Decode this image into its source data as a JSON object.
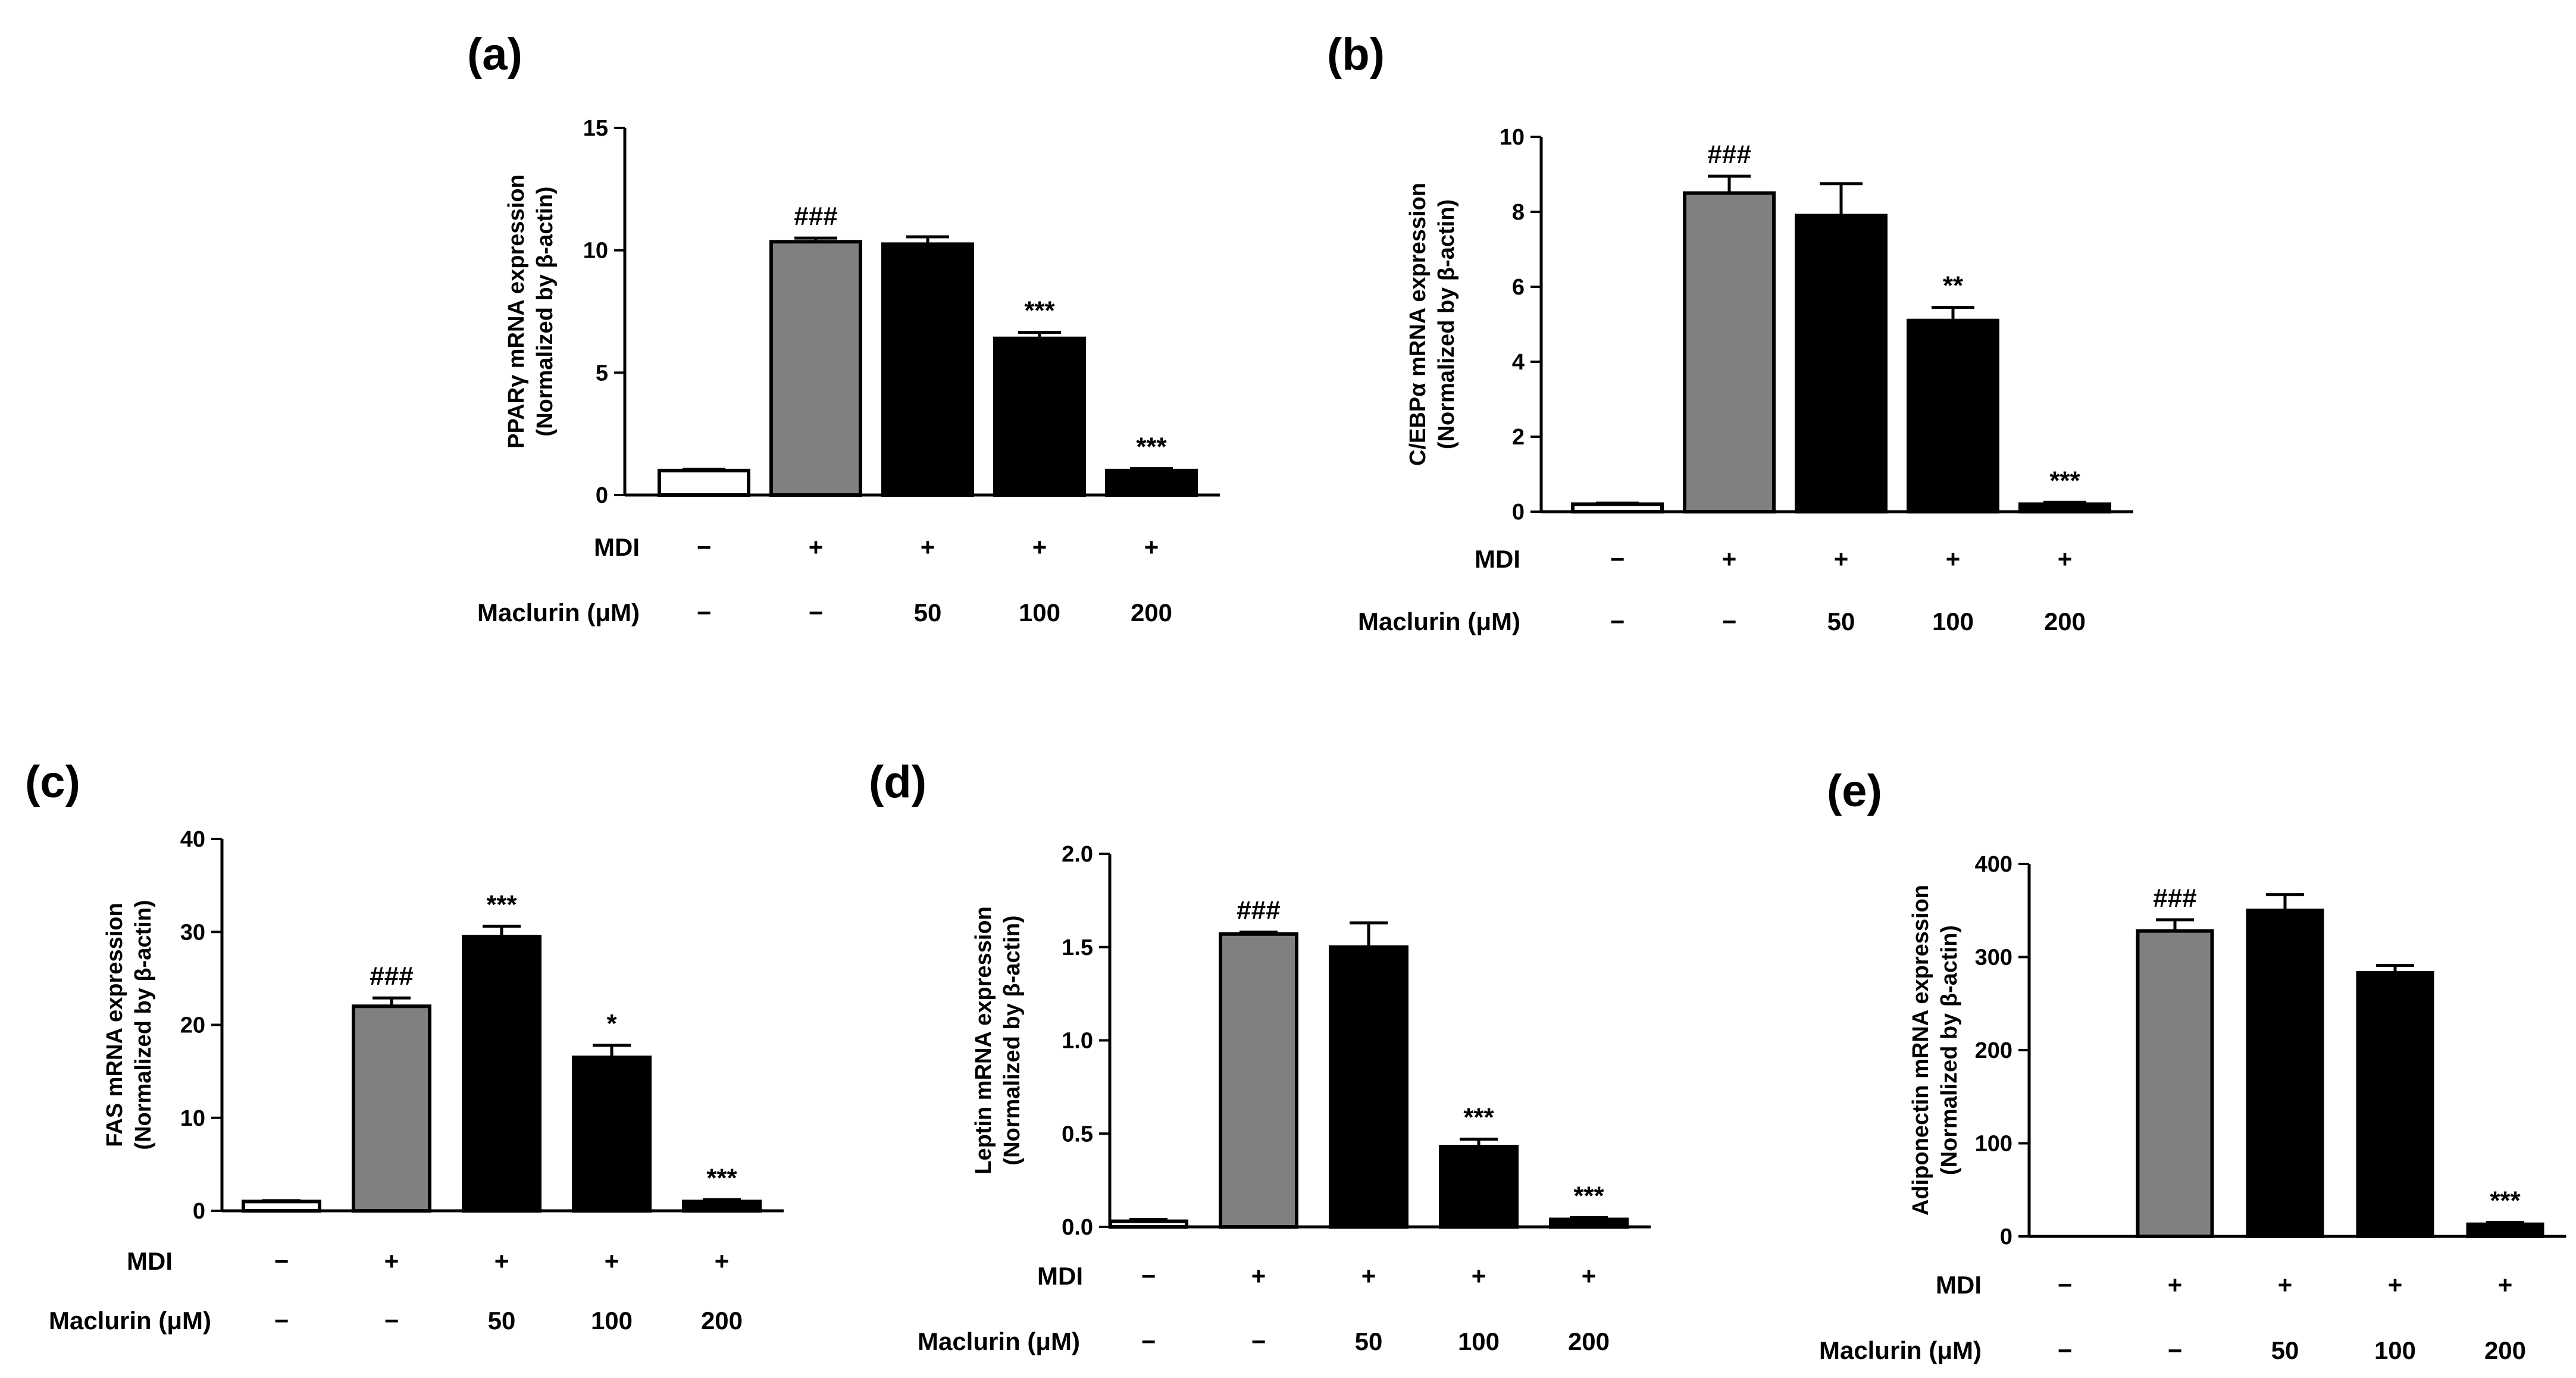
{
  "colors": {
    "control": "#ffffff",
    "mdi": "#808080",
    "maclurin": "#000000",
    "outline": "#000000"
  },
  "chart_data": [
    {
      "type": "bar",
      "panel_label": "(a)",
      "ylabel_line1": "PPARγ mRNA expression",
      "ylabel_line2": "(Normalized by β-actin)",
      "ylim": [
        0,
        15
      ],
      "yticks": [
        0,
        5,
        10,
        15
      ],
      "ytick_labels": [
        "0",
        "5",
        "10",
        "15"
      ],
      "values": [
        1.0,
        10.35,
        10.25,
        6.4,
        1.0
      ],
      "errors": [
        0.05,
        0.15,
        0.3,
        0.25,
        0.08
      ],
      "annotations": [
        "",
        "###",
        "",
        "***",
        "***"
      ],
      "conditions": {
        "mdi_label": "MDI",
        "mdi": [
          "−",
          "+",
          "+",
          "+",
          "+"
        ],
        "maclurin_label": "Maclurin (μM)",
        "maclurin": [
          "−",
          "−",
          "50",
          "100",
          "200"
        ]
      }
    },
    {
      "type": "bar",
      "panel_label": "(b)",
      "ylabel_line1": "C/EBPα mRNA expression",
      "ylabel_line2": "(Normalized by β-actin)",
      "ylim": [
        0,
        10
      ],
      "yticks": [
        0,
        2,
        4,
        6,
        8,
        10
      ],
      "ytick_labels": [
        "0",
        "2",
        "4",
        "6",
        "8",
        "10"
      ],
      "values": [
        0.2,
        8.5,
        7.9,
        5.1,
        0.2
      ],
      "errors": [
        0.03,
        0.45,
        0.85,
        0.35,
        0.05
      ],
      "annotations": [
        "",
        "###",
        "",
        "**",
        "***"
      ],
      "conditions": {
        "mdi_label": "MDI",
        "mdi": [
          "−",
          "+",
          "+",
          "+",
          "+"
        ],
        "maclurin_label": "Maclurin (μM)",
        "maclurin": [
          "−",
          "−",
          "50",
          "100",
          "200"
        ]
      }
    },
    {
      "type": "bar",
      "panel_label": "(c)",
      "ylabel_line1": "FAS mRNA expression",
      "ylabel_line2": "(Normalized by β-actin)",
      "ylim": [
        0,
        40
      ],
      "yticks": [
        0,
        10,
        20,
        30,
        40
      ],
      "ytick_labels": [
        "0",
        "10",
        "20",
        "30",
        "40"
      ],
      "values": [
        1.0,
        22.0,
        29.5,
        16.5,
        1.0
      ],
      "errors": [
        0.1,
        0.9,
        1.1,
        1.3,
        0.2
      ],
      "annotations": [
        "",
        "###",
        "***",
        "*",
        "***"
      ],
      "conditions": {
        "mdi_label": "MDI",
        "mdi": [
          "−",
          "+",
          "+",
          "+",
          "+"
        ],
        "maclurin_label": "Maclurin (μM)",
        "maclurin": [
          "−",
          "−",
          "50",
          "100",
          "200"
        ]
      }
    },
    {
      "type": "bar",
      "panel_label": "(d)",
      "ylabel_line1": "Leptin mRNA expression",
      "ylabel_line2": "(Normalized by β-actin)",
      "ylim": [
        0,
        2.0
      ],
      "yticks": [
        0,
        0.5,
        1.0,
        1.5,
        2.0
      ],
      "ytick_labels": [
        "0.0",
        "0.5",
        "1.0",
        "1.5",
        "2.0"
      ],
      "values": [
        0.03,
        1.57,
        1.5,
        0.43,
        0.04
      ],
      "errors": [
        0.01,
        0.01,
        0.13,
        0.04,
        0.01
      ],
      "annotations": [
        "",
        "###",
        "",
        "***",
        "***"
      ],
      "conditions": {
        "mdi_label": "MDI",
        "mdi": [
          "−",
          "+",
          "+",
          "+",
          "+"
        ],
        "maclurin_label": "Maclurin (μM)",
        "maclurin": [
          "−",
          "−",
          "50",
          "100",
          "200"
        ]
      }
    },
    {
      "type": "bar",
      "panel_label": "(e)",
      "ylabel_line1": "Adiponectin mRNA expression",
      "ylabel_line2": "(Normalized by β-actin)",
      "ylim": [
        0,
        400
      ],
      "yticks": [
        0,
        100,
        200,
        300,
        400
      ],
      "ytick_labels": [
        "0",
        "100",
        "200",
        "300",
        "400"
      ],
      "values": [
        0,
        328,
        350,
        283,
        13
      ],
      "errors": [
        0,
        12,
        17,
        8,
        2
      ],
      "annotations": [
        "",
        "###",
        "",
        "",
        "***"
      ],
      "conditions": {
        "mdi_label": "MDI",
        "mdi": [
          "−",
          "+",
          "+",
          "+",
          "+"
        ],
        "maclurin_label": "Maclurin (μM)",
        "maclurin": [
          "−",
          "−",
          "50",
          "100",
          "200"
        ]
      }
    }
  ]
}
